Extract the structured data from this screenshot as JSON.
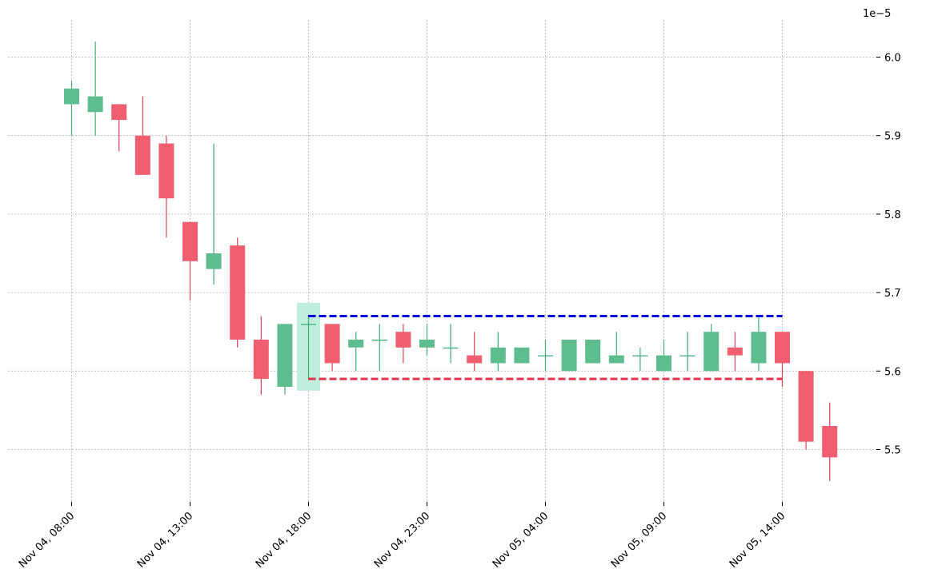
{
  "chart_data": {
    "type": "candlestick",
    "title": "",
    "xlabel": "",
    "ylabel": "",
    "y_scale_note": "1e−5",
    "ylim": [
      5.43,
      6.05
    ],
    "grid": true,
    "x_ticks": [
      {
        "index": 0,
        "label": "Nov 04, 08:00"
      },
      {
        "index": 5,
        "label": "Nov 04, 13:00"
      },
      {
        "index": 10,
        "label": "Nov 04, 18:00"
      },
      {
        "index": 15,
        "label": "Nov 04, 23:00"
      },
      {
        "index": 20,
        "label": "Nov 05, 04:00"
      },
      {
        "index": 25,
        "label": "Nov 05, 09:00"
      },
      {
        "index": 30,
        "label": "Nov 05, 14:00"
      }
    ],
    "y_ticks": [
      "5.5",
      "5.6",
      "5.7",
      "5.8",
      "5.9",
      "6.0"
    ],
    "candles": [
      {
        "open": 5.94,
        "high": 5.97,
        "low": 5.9,
        "close": 5.96
      },
      {
        "open": 5.93,
        "high": 6.02,
        "low": 5.9,
        "close": 5.95
      },
      {
        "open": 5.94,
        "high": 5.94,
        "low": 5.88,
        "close": 5.92
      },
      {
        "open": 5.9,
        "high": 5.95,
        "low": 5.85,
        "close": 5.85
      },
      {
        "open": 5.89,
        "high": 5.9,
        "low": 5.77,
        "close": 5.82
      },
      {
        "open": 5.79,
        "high": 5.79,
        "low": 5.69,
        "close": 5.74
      },
      {
        "open": 5.73,
        "high": 5.89,
        "low": 5.71,
        "close": 5.75
      },
      {
        "open": 5.76,
        "high": 5.77,
        "low": 5.63,
        "close": 5.64
      },
      {
        "open": 5.64,
        "high": 5.67,
        "low": 5.57,
        "close": 5.59
      },
      {
        "open": 5.58,
        "high": 5.66,
        "low": 5.57,
        "close": 5.66
      },
      {
        "open": 5.66,
        "high": 5.67,
        "low": 5.59,
        "close": 5.66
      },
      {
        "open": 5.66,
        "high": 5.66,
        "low": 5.6,
        "close": 5.61
      },
      {
        "open": 5.63,
        "high": 5.65,
        "low": 5.6,
        "close": 5.64
      },
      {
        "open": 5.64,
        "high": 5.66,
        "low": 5.6,
        "close": 5.64
      },
      {
        "open": 5.65,
        "high": 5.66,
        "low": 5.61,
        "close": 5.63
      },
      {
        "open": 5.63,
        "high": 5.66,
        "low": 5.62,
        "close": 5.64
      },
      {
        "open": 5.63,
        "high": 5.66,
        "low": 5.61,
        "close": 5.63
      },
      {
        "open": 5.62,
        "high": 5.65,
        "low": 5.6,
        "close": 5.61
      },
      {
        "open": 5.61,
        "high": 5.65,
        "low": 5.6,
        "close": 5.63
      },
      {
        "open": 5.61,
        "high": 5.63,
        "low": 5.61,
        "close": 5.63
      },
      {
        "open": 5.62,
        "high": 5.64,
        "low": 5.6,
        "close": 5.62
      },
      {
        "open": 5.6,
        "high": 5.64,
        "low": 5.6,
        "close": 5.64
      },
      {
        "open": 5.61,
        "high": 5.64,
        "low": 5.61,
        "close": 5.64
      },
      {
        "open": 5.61,
        "high": 5.65,
        "low": 5.61,
        "close": 5.62
      },
      {
        "open": 5.62,
        "high": 5.63,
        "low": 5.6,
        "close": 5.62
      },
      {
        "open": 5.6,
        "high": 5.64,
        "low": 5.6,
        "close": 5.62
      },
      {
        "open": 5.62,
        "high": 5.65,
        "low": 5.6,
        "close": 5.62
      },
      {
        "open": 5.6,
        "high": 5.66,
        "low": 5.6,
        "close": 5.65
      },
      {
        "open": 5.63,
        "high": 5.65,
        "low": 5.6,
        "close": 5.62
      },
      {
        "open": 5.61,
        "high": 5.67,
        "low": 5.6,
        "close": 5.65
      },
      {
        "open": 5.65,
        "high": 5.65,
        "low": 5.58,
        "close": 5.61
      },
      {
        "open": 5.6,
        "high": 5.6,
        "low": 5.5,
        "close": 5.51
      },
      {
        "open": 5.53,
        "high": 5.56,
        "low": 5.46,
        "close": 5.49
      }
    ],
    "highlight": {
      "candle_index": 10,
      "y_low": 5.575,
      "y_high": 5.687,
      "color": "#bfeedd"
    },
    "resistance": {
      "y": 5.67,
      "x_start_index": 10,
      "x_end_index": 30,
      "color": "#0000dd",
      "style": "dashed"
    },
    "support": {
      "y": 5.59,
      "x_start_index": 10,
      "x_end_index": 30,
      "color": "#e0334d",
      "style": "dashed"
    },
    "colors": {
      "up": "#5ebd8e",
      "up_wick": "#3fae79",
      "down": "#ef5f6f",
      "down_wick": "#e54356"
    }
  }
}
